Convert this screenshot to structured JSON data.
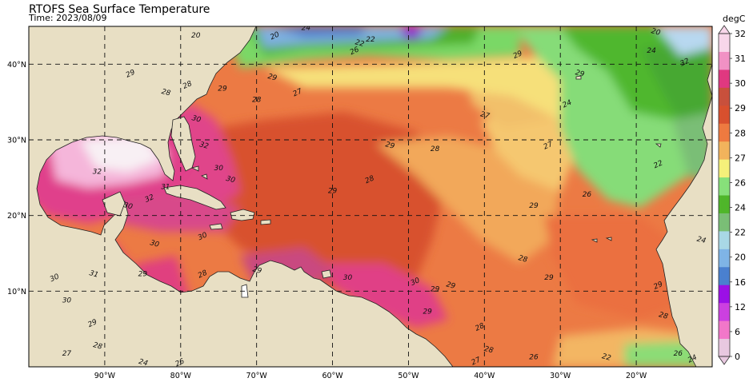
{
  "header": {
    "title": "RTOFS Sea Surface Temperature",
    "time_label": "Time: 2023/08/09"
  },
  "map": {
    "lon_range": [
      -100,
      -10
    ],
    "lat_range": [
      0,
      45
    ],
    "lat_ticks": [
      {
        "v": 10,
        "label": "10°N"
      },
      {
        "v": 20,
        "label": "20°N"
      },
      {
        "v": 30,
        "label": "30°N"
      },
      {
        "v": 40,
        "label": "40°N"
      }
    ],
    "lon_ticks": [
      {
        "v": -90,
        "label": "90°W"
      },
      {
        "v": -80,
        "label": "80°W"
      },
      {
        "v": -70,
        "label": "70°W"
      },
      {
        "v": -60,
        "label": "60°W"
      },
      {
        "v": -50,
        "label": "50°W"
      },
      {
        "v": -40,
        "label": "40°W"
      },
      {
        "v": -30,
        "label": "30°W"
      },
      {
        "v": -20,
        "label": "20°W"
      }
    ],
    "colors": {
      "land": "#e8dfc4",
      "ocean_base": "#eb7a45"
    },
    "contour_labels": [
      {
        "text": "29",
        "lon": -86.5,
        "lat": 38.5
      },
      {
        "text": "28",
        "lon": -82.0,
        "lat": 36.0
      },
      {
        "text": "28",
        "lon": -70.0,
        "lat": 35.0
      },
      {
        "text": "27",
        "lon": -64.5,
        "lat": 36.0
      },
      {
        "text": "29",
        "lon": -52.5,
        "lat": 29.0
      },
      {
        "text": "28",
        "lon": -46.5,
        "lat": 28.5
      },
      {
        "text": "27",
        "lon": -31.5,
        "lat": 29.0
      },
      {
        "text": "29",
        "lon": -68.0,
        "lat": 38.0
      },
      {
        "text": "29",
        "lon": -60.0,
        "lat": 23.0
      },
      {
        "text": "28",
        "lon": -55.0,
        "lat": 24.5
      },
      {
        "text": "30",
        "lon": -73.5,
        "lat": 24.5
      },
      {
        "text": "32",
        "lon": -91.0,
        "lat": 25.5
      },
      {
        "text": "32",
        "lon": -84.0,
        "lat": 22.0
      },
      {
        "text": "30",
        "lon": -87.0,
        "lat": 21.0
      },
      {
        "text": "31",
        "lon": -82.0,
        "lat": 23.5
      },
      {
        "text": "30",
        "lon": -77.0,
        "lat": 17.0
      },
      {
        "text": "30",
        "lon": -83.5,
        "lat": 16.0
      },
      {
        "text": "29",
        "lon": -85.0,
        "lat": 12.0
      },
      {
        "text": "28",
        "lon": -77.0,
        "lat": 12.0
      },
      {
        "text": "29",
        "lon": -70.0,
        "lat": 12.5
      },
      {
        "text": "30",
        "lon": -58.0,
        "lat": 11.5
      },
      {
        "text": "30",
        "lon": -49.0,
        "lat": 11.0
      },
      {
        "text": "29",
        "lon": -44.5,
        "lat": 10.5
      },
      {
        "text": "29",
        "lon": -47.5,
        "lat": 7.0
      },
      {
        "text": "28",
        "lon": -40.5,
        "lat": 5.0
      },
      {
        "text": "28",
        "lon": -35.0,
        "lat": 14.0
      },
      {
        "text": "29",
        "lon": -31.5,
        "lat": 11.5
      },
      {
        "text": "29",
        "lon": -17.0,
        "lat": 10.5
      },
      {
        "text": "28",
        "lon": -16.5,
        "lat": 6.5
      },
      {
        "text": "29",
        "lon": -33.5,
        "lat": 21.0
      },
      {
        "text": "24",
        "lon": -29.0,
        "lat": 34.5
      },
      {
        "text": "29",
        "lon": -27.5,
        "lat": 38.5
      },
      {
        "text": "24",
        "lon": -18.0,
        "lat": 41.5
      },
      {
        "text": "22",
        "lon": -17.0,
        "lat": 26.5
      },
      {
        "text": "24",
        "lon": -11.5,
        "lat": 16.5
      },
      {
        "text": "20",
        "lon": -78.0,
        "lat": 43.5
      },
      {
        "text": "20",
        "lon": -67.5,
        "lat": 43.5
      },
      {
        "text": "22",
        "lon": -56.5,
        "lat": 42.5
      },
      {
        "text": "24",
        "lon": -63.5,
        "lat": 44.5
      },
      {
        "text": "26",
        "lon": -57.0,
        "lat": 41.5
      },
      {
        "text": "32",
        "lon": -77.0,
        "lat": 29.0
      },
      {
        "text": "30",
        "lon": -75.0,
        "lat": 26.0
      },
      {
        "text": "29",
        "lon": -35.5,
        "lat": 41.0
      },
      {
        "text": "27",
        "lon": -40.0,
        "lat": 33.0
      },
      {
        "text": "26",
        "lon": -26.5,
        "lat": 22.5
      },
      {
        "text": "30",
        "lon": -96.5,
        "lat": 11.5
      },
      {
        "text": "31",
        "lon": -91.5,
        "lat": 12.0
      },
      {
        "text": "30",
        "lon": -95.0,
        "lat": 8.5
      },
      {
        "text": "29",
        "lon": -91.5,
        "lat": 5.5
      },
      {
        "text": "28",
        "lon": -91.0,
        "lat": 2.5
      },
      {
        "text": "27",
        "lon": -95.0,
        "lat": 1.5
      },
      {
        "text": "26",
        "lon": -80.0,
        "lat": 0.3
      },
      {
        "text": "24",
        "lon": -85.0,
        "lat": 0.3
      },
      {
        "text": "29",
        "lon": -74.5,
        "lat": 36.5
      },
      {
        "text": "28",
        "lon": -79.0,
        "lat": 37.0
      },
      {
        "text": "30",
        "lon": -78.0,
        "lat": 32.5
      },
      {
        "text": "26",
        "lon": -14.5,
        "lat": 1.5
      },
      {
        "text": "24",
        "lon": -12.5,
        "lat": 0.8
      },
      {
        "text": "22",
        "lon": -24.0,
        "lat": 1.0
      },
      {
        "text": "26",
        "lon": -33.5,
        "lat": 1.0
      },
      {
        "text": "27",
        "lon": -41.0,
        "lat": 0.5
      },
      {
        "text": "28",
        "lon": -39.5,
        "lat": 2.0
      },
      {
        "text": "29",
        "lon": -46.5,
        "lat": 10.0
      },
      {
        "text": "32",
        "lon": -13.5,
        "lat": 40.0
      },
      {
        "text": "20",
        "lon": -17.5,
        "lat": 44.0
      },
      {
        "text": "22",
        "lon": -55.0,
        "lat": 43.0
      }
    ]
  },
  "colorbar": {
    "unit": "degC",
    "levels": [
      0,
      6,
      12,
      16,
      20,
      22,
      24,
      26,
      27,
      28,
      29,
      30,
      31,
      32
    ],
    "colors": [
      "#e8c8e0",
      "#f277c9",
      "#cc40e0",
      "#9b10e6",
      "#4a80cf",
      "#7fb4e6",
      "#a9d8e6",
      "#7abe76",
      "#4fb62a",
      "#87e07a",
      "#f5f07a",
      "#f2b35c",
      "#ee7a40",
      "#d8502e",
      "#c8503c",
      "#e03880",
      "#f191c4",
      "#f8d6ea"
    ],
    "tick_labels": [
      "0",
      "6",
      "12",
      "16",
      "20",
      "22",
      "24",
      "26",
      "27",
      "28",
      "29",
      "30",
      "31",
      "32"
    ]
  }
}
